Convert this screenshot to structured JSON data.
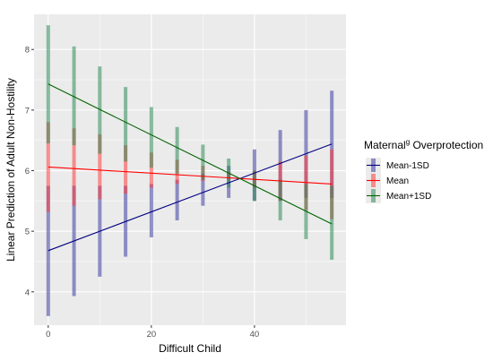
{
  "chart_data": {
    "type": "line",
    "xlabel": "Difficult Child",
    "ylabel": "Linear Prediction of Adult Non-Hostility",
    "xlim": [
      -2.75,
      57.75
    ],
    "ylim": [
      3.45,
      8.58
    ],
    "xticks": [
      0,
      20,
      40
    ],
    "yticks": [
      4,
      5,
      6,
      7,
      8
    ],
    "x_tick_labels": [
      "0",
      "20",
      "40"
    ],
    "y_tick_labels": [
      "4",
      "5",
      "6",
      "7",
      "8"
    ],
    "grid": true,
    "background": "#ebebeb",
    "legend": {
      "title_main": "Maternal",
      "title_super": "g",
      "title_rest": " Overprotection",
      "position": "right"
    },
    "x": [
      0,
      5,
      10,
      15,
      20,
      25,
      30,
      35,
      40,
      45,
      50,
      55
    ],
    "series": [
      {
        "name": "Mean-1SD",
        "color": "#000080",
        "bar_color": "#3c3ca0",
        "line": [
          4.68,
          6.44
        ],
        "low": [
          3.6,
          3.93,
          4.25,
          4.58,
          4.9,
          5.18,
          5.42,
          5.55,
          5.5,
          5.5,
          5.55,
          5.55
        ],
        "high": [
          5.75,
          5.75,
          5.75,
          5.75,
          5.78,
          5.85,
          5.95,
          6.08,
          6.35,
          6.67,
          7.0,
          7.32
        ]
      },
      {
        "name": "Mean",
        "color": "#ff0000",
        "bar_color": "#ff3c3c",
        "line": [
          6.06,
          5.78
        ],
        "low": [
          5.32,
          5.42,
          5.53,
          5.62,
          5.72,
          5.78,
          5.83,
          5.85,
          5.72,
          5.5,
          5.35,
          5.2
        ],
        "high": [
          6.8,
          6.7,
          6.6,
          6.42,
          6.3,
          6.18,
          6.08,
          5.98,
          6.0,
          6.15,
          6.25,
          6.35
        ]
      },
      {
        "name": "Mean+1SD",
        "color": "#006400",
        "bar_color": "#2e8b57",
        "line": [
          7.43,
          5.12
        ],
        "low": [
          6.45,
          6.42,
          6.28,
          6.15,
          6.05,
          5.95,
          5.85,
          5.72,
          5.5,
          5.18,
          4.87,
          4.53
        ],
        "high": [
          8.4,
          8.05,
          7.72,
          7.38,
          7.05,
          6.72,
          6.43,
          6.2,
          6.0,
          5.85,
          5.78,
          5.75
        ]
      }
    ]
  }
}
